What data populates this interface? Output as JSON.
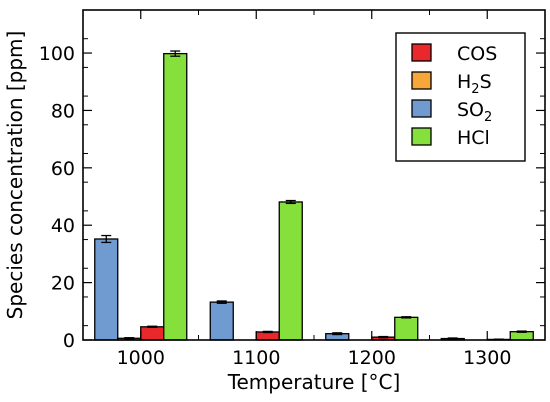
{
  "chart_data": {
    "type": "bar",
    "categories": [
      "1000",
      "1100",
      "1200",
      "1300"
    ],
    "xlabel": "Temperature [°C]",
    "ylabel": "Species concentration [ppm]",
    "ylim": [
      0,
      115
    ],
    "yticks": [
      0,
      20,
      40,
      60,
      80,
      100
    ],
    "grid": false,
    "legend_position": "top-right",
    "series": [
      {
        "name": "SO2",
        "label_base": "SO",
        "label_sub": "2",
        "color": "#6f9bd1",
        "values": [
          35.2,
          13.2,
          2.2,
          0.5
        ],
        "errors": [
          1.2,
          0.4,
          0.3,
          0.2
        ]
      },
      {
        "name": "H2S",
        "label_base": "H",
        "label_sub": "2",
        "label_suffix": "S",
        "color": "#f7a73a",
        "values": [
          0.6,
          0.0,
          0.0,
          0.0
        ],
        "errors": [
          0.2,
          0.0,
          0.0,
          0.0
        ]
      },
      {
        "name": "COS",
        "label_base": "COS",
        "color": "#e8282a",
        "values": [
          4.6,
          2.8,
          1.0,
          0.2
        ],
        "errors": [
          0.2,
          0.2,
          0.2,
          0.1
        ]
      },
      {
        "name": "HCl",
        "label_base": "HCl",
        "color": "#86e03c",
        "values": [
          99.8,
          48.1,
          7.9,
          2.9
        ],
        "errors": [
          0.9,
          0.5,
          0.2,
          0.2
        ]
      }
    ],
    "legend_order": [
      "COS",
      "H2S",
      "SO2",
      "HCl"
    ]
  }
}
